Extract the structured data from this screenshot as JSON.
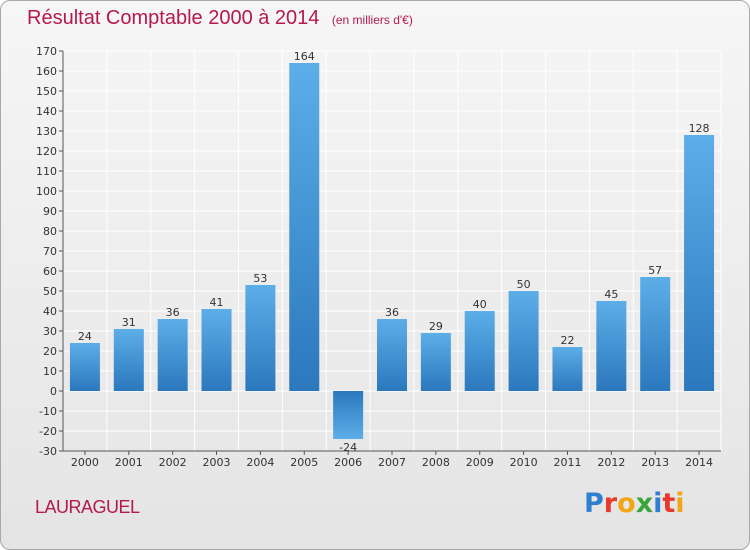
{
  "title": "Résultat Comptable 2000 à 2014",
  "unit_note": "(en milliers d'€)",
  "commune": "LAURAGUEL",
  "brand": {
    "name": "Proxiti",
    "letters": [
      {
        "char": "P",
        "color": "#2f7fd0"
      },
      {
        "char": "r",
        "color": "#e8392c"
      },
      {
        "char": "o",
        "color": "#f2a516"
      },
      {
        "char": "x",
        "color": "#3aa63a"
      },
      {
        "char": "i",
        "color": "#2f7fd0"
      },
      {
        "char": "t",
        "color": "#e8392c"
      },
      {
        "char": "i",
        "color": "#f2a516"
      }
    ]
  },
  "colors": {
    "title": "#b5194f",
    "bar_light": "#5caee8",
    "bar_dark": "#2b78bd",
    "grid": "#ffffff",
    "axis": "#555555"
  },
  "chart_data": {
    "type": "bar",
    "title": "Résultat Comptable 2000 à 2014",
    "xlabel": "",
    "ylabel": "en milliers d'€",
    "categories": [
      "2000",
      "2001",
      "2002",
      "2003",
      "2004",
      "2005",
      "2006",
      "2007",
      "2008",
      "2009",
      "2010",
      "2011",
      "2012",
      "2013",
      "2014"
    ],
    "values": [
      24,
      31,
      36,
      41,
      53,
      164,
      -24,
      36,
      29,
      40,
      50,
      22,
      45,
      57,
      128
    ],
    "ylim": [
      -30,
      170
    ],
    "ytick_step": 10,
    "grid": true,
    "legend": "none"
  }
}
